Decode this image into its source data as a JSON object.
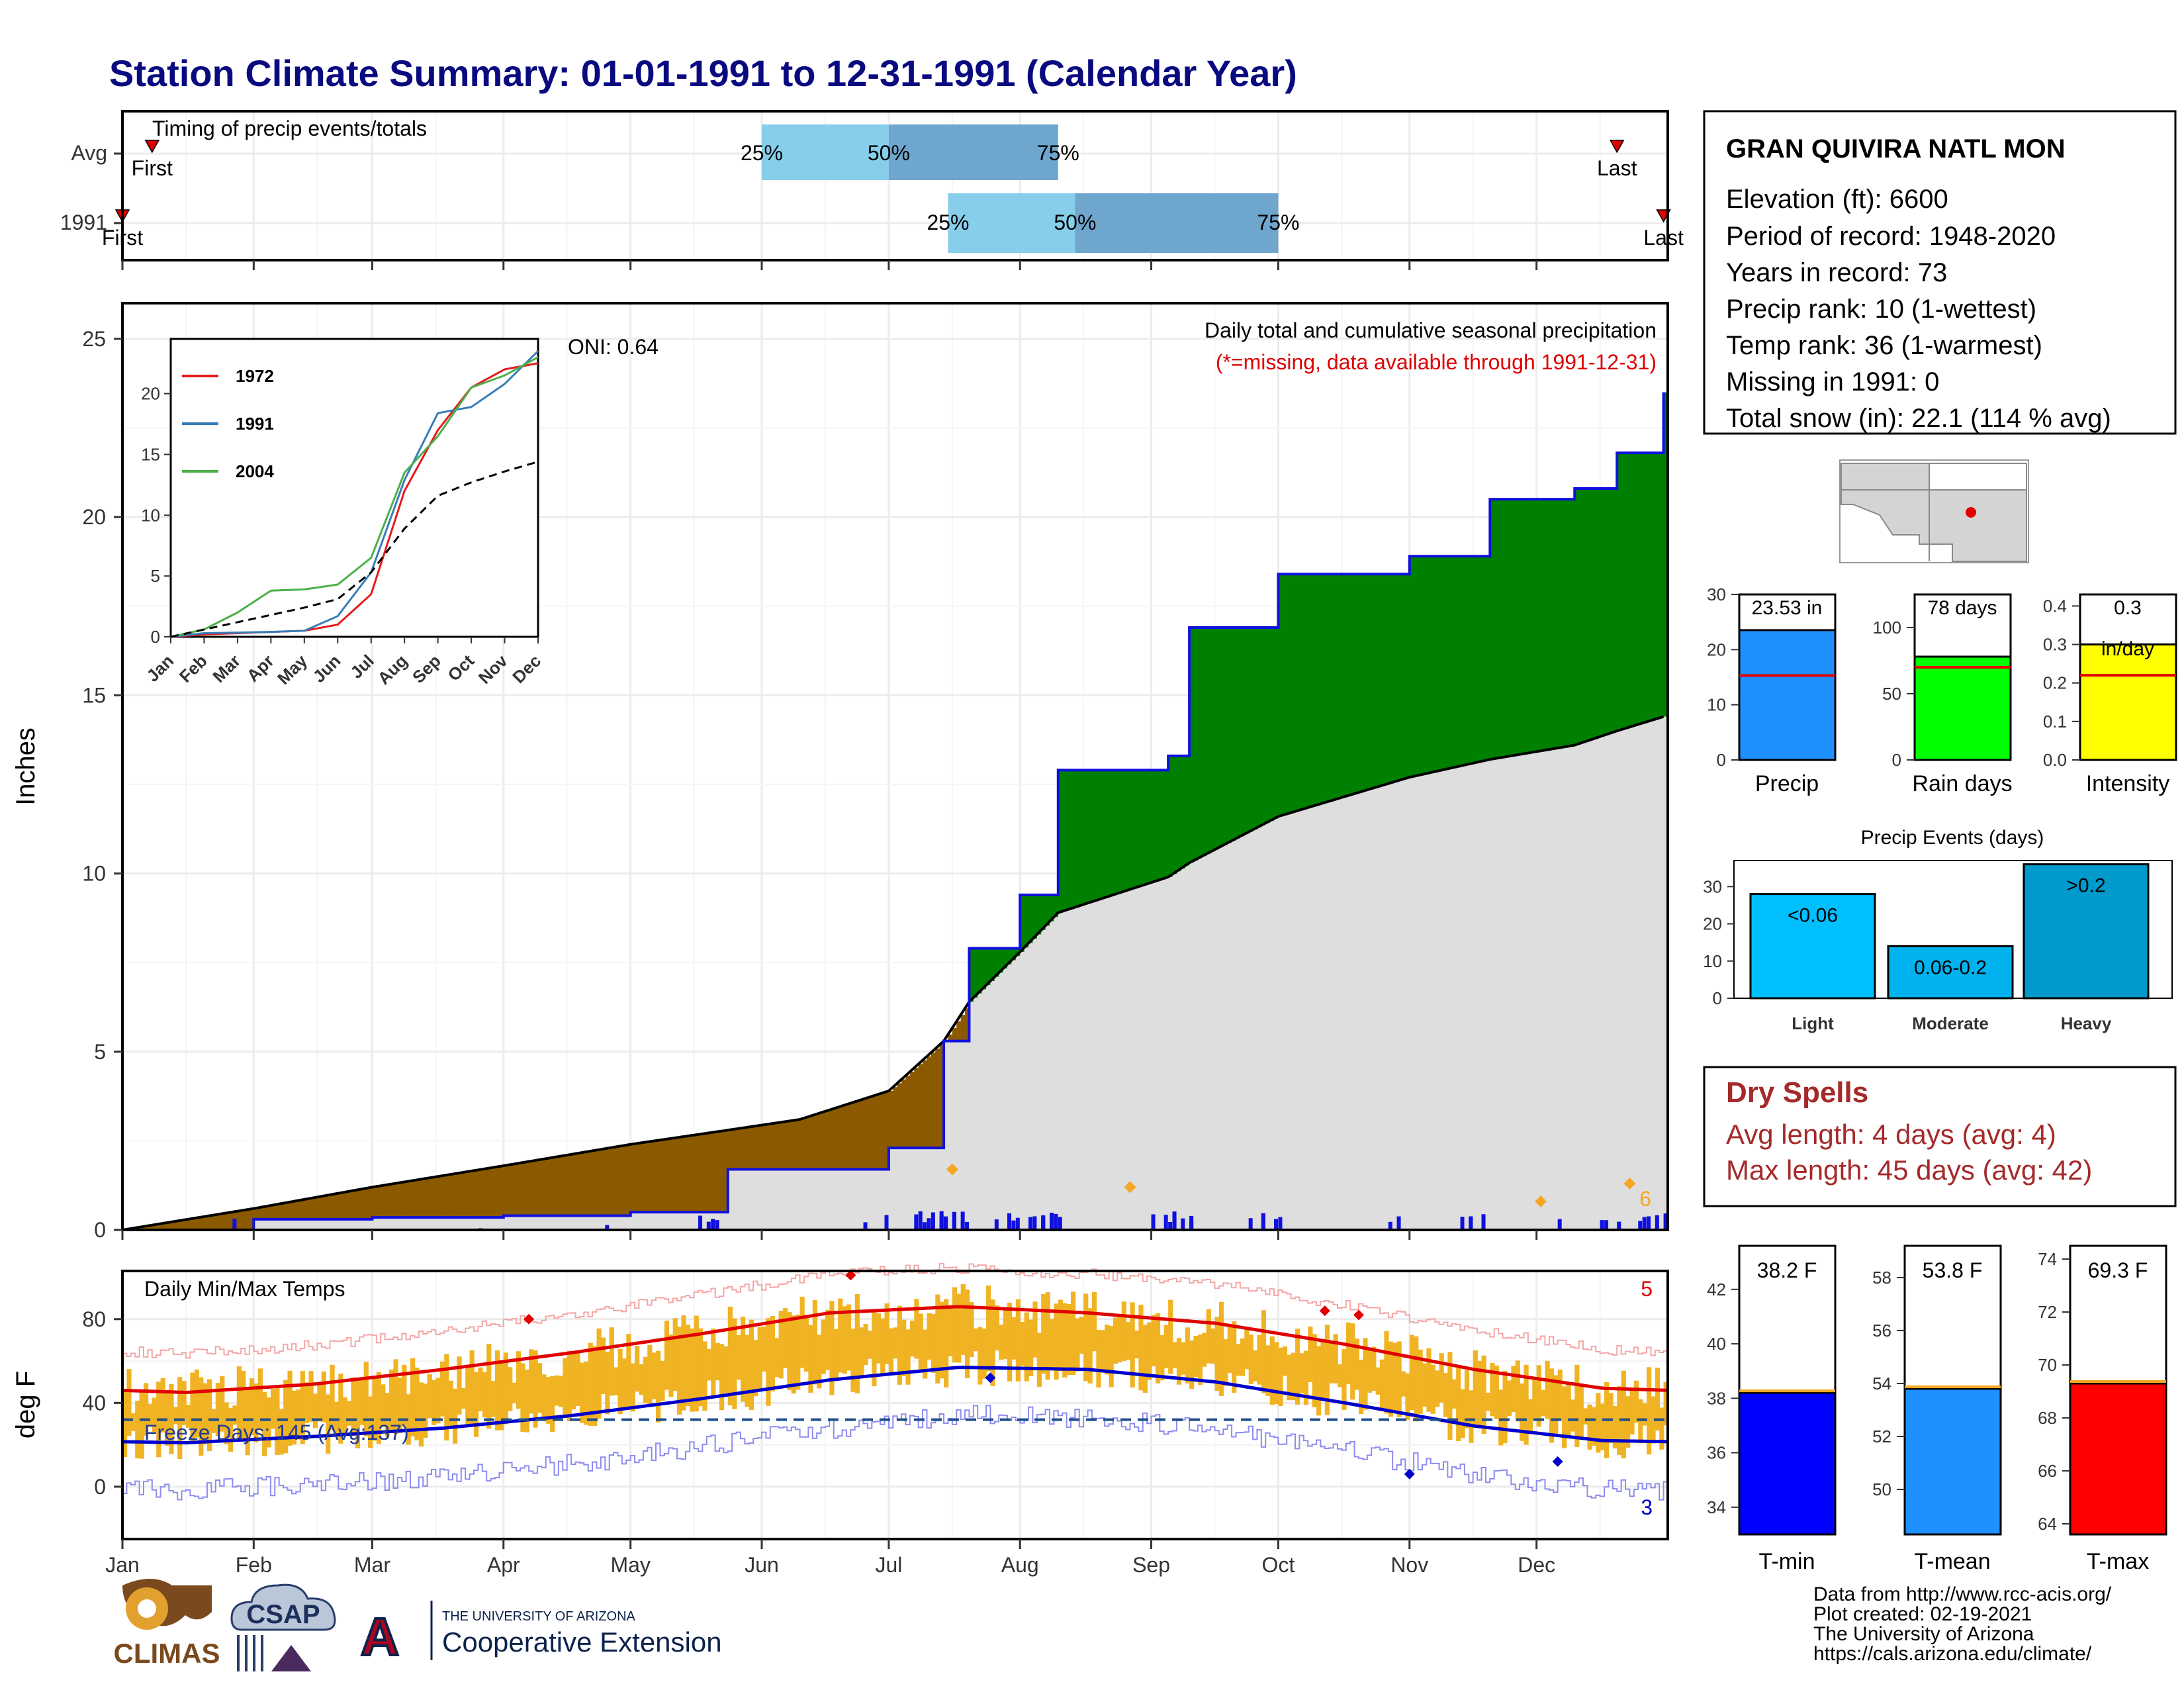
{
  "title": "Station Climate Summary: 01-01-1991 to 12-31-1991 (Calendar Year)",
  "timing_panel": {
    "label": "Timing of precip events/totals",
    "rows": [
      {
        "label": "Avg",
        "p25": "25%",
        "p50": "50%",
        "p75": "75%",
        "first": "First",
        "last": "Last",
        "first_date": "1991-01-08",
        "last_date": "1991-12-20",
        "q25": "1991-06-01",
        "q50": "1991-07-01",
        "q75": "1991-08-10"
      },
      {
        "label": "1991",
        "p25": "25%",
        "p50": "50%",
        "p75": "75%",
        "first": "First",
        "last": "Last",
        "first_date": "1991-01-01",
        "last_date": "1991-12-31",
        "q25": "1991-07-15",
        "q50": "1991-08-14",
        "q75": "1991-10-01"
      }
    ]
  },
  "precip_panel": {
    "ylabel": "Inches",
    "caption": "Daily total and cumulative seasonal precipitation",
    "missing_note": "(*=missing, data available through 1991-12-31)",
    "oni": "ONI: 0.64",
    "count_label": "6",
    "yticks": [
      "0",
      "5",
      "10",
      "15",
      "20",
      "25"
    ]
  },
  "temp_panel": {
    "label": "Daily Min/Max Temps",
    "ylabel": "deg F",
    "freeze_label": "Freeze Days: 145 (Avg:137)",
    "top_count": "5",
    "bottom_count": "3",
    "yticks": [
      "0",
      "40",
      "80"
    ]
  },
  "months": [
    "Jan",
    "Feb",
    "Mar",
    "Apr",
    "May",
    "Jun",
    "Jul",
    "Aug",
    "Sep",
    "Oct",
    "Nov",
    "Dec"
  ],
  "inset": {
    "legend": [
      "1972",
      "1991",
      "2004"
    ],
    "yticks": [
      "0",
      "5",
      "10",
      "15",
      "20"
    ],
    "months": [
      "Jan",
      "Feb",
      "Mar",
      "Apr",
      "May",
      "Jun",
      "Jul",
      "Aug",
      "Sep",
      "Oct",
      "Nov",
      "Dec"
    ]
  },
  "station": {
    "name": "GRAN QUIVIRA NATL MON",
    "lines": [
      "Elevation (ft): 6600",
      "Period of record: 1948-2020",
      "Years in record: 73",
      "Precip rank: 10 (1-wettest)",
      "Temp rank: 36 (1-warmest)",
      "Missing in 1991: 0",
      "Total snow (in): 22.1 (114 % avg)"
    ]
  },
  "summary_bars": [
    {
      "label": "Precip",
      "value_text": "23.53 in",
      "value": 23.53,
      "avg": 15.3,
      "ymax": 30,
      "ticks": [
        "0",
        "10",
        "20",
        "30"
      ],
      "tickv": [
        0,
        10,
        20,
        30
      ],
      "color": "#1e90ff"
    },
    {
      "label": "Rain days",
      "value_text": "78 days",
      "value": 78,
      "avg": 70,
      "ymax": 125,
      "ticks": [
        "0",
        "50",
        "100"
      ],
      "tickv": [
        0,
        50,
        100
      ],
      "color": "#00ff00"
    },
    {
      "label": "Intensity",
      "value_text": "0.3",
      "value_text2": "in/day",
      "value": 0.3,
      "avg": 0.22,
      "ymax": 0.43,
      "ticks": [
        "0.0",
        "0.1",
        "0.2",
        "0.3",
        "0.4"
      ],
      "tickv": [
        0,
        0.1,
        0.2,
        0.3,
        0.4
      ],
      "color": "#ffff00"
    }
  ],
  "precip_events": {
    "title": "Precip Events (days)",
    "yticks": [
      "0",
      "10",
      "20",
      "30"
    ],
    "bars": [
      {
        "label": "Light",
        "bar_text": "<0.06",
        "value": 28,
        "color": "#00bfff"
      },
      {
        "label": "Moderate",
        "bar_text": "0.06-0.2",
        "value": 14,
        "color": "#00b2ee"
      },
      {
        "label": "Heavy",
        "bar_text": ">0.2",
        "value": 36,
        "color": "#009acd"
      }
    ]
  },
  "dry_spells": {
    "title": "Dry Spells",
    "avg_line": "Avg length: 4 days (avg: 4)",
    "max_line": "Max length: 45 days (avg: 42)"
  },
  "temp_bars": [
    {
      "label": "T-min",
      "value_text": "38.2 F",
      "value": 38.2,
      "ymin": 33,
      "ymax": 43.6,
      "ticks": [
        "34",
        "36",
        "38",
        "40",
        "42"
      ],
      "tickv": [
        34,
        36,
        38,
        40,
        42
      ],
      "color": "#0000ff"
    },
    {
      "label": "T-mean",
      "value_text": "53.8 F",
      "value": 53.8,
      "ymin": 48.3,
      "ymax": 59.2,
      "ticks": [
        "50",
        "52",
        "54",
        "56",
        "58"
      ],
      "tickv": [
        50,
        52,
        54,
        56,
        58
      ],
      "color": "#1e90ff"
    },
    {
      "label": "T-max",
      "value_text": "69.3 F",
      "value": 69.3,
      "ymin": 63.6,
      "ymax": 74.5,
      "ticks": [
        "64",
        "66",
        "68",
        "70",
        "72",
        "74"
      ],
      "tickv": [
        64,
        66,
        68,
        70,
        72,
        74
      ],
      "color": "#ff0000"
    }
  ],
  "footer": {
    "credits": [
      "Data from http://www.rcc-acis.org/",
      "Plot created: 02-19-2021",
      "The University of Arizona",
      "https://cals.arizona.edu/climate/"
    ],
    "logo_climas": "CLIMAS",
    "logo_csap": "CSAP",
    "logo_ua_small": "THE UNIVERSITY OF ARIZONA",
    "logo_ua_big": "Cooperative Extension"
  },
  "chart_data": [
    {
      "type": "area",
      "title": "Daily total and cumulative seasonal precipitation",
      "ylabel": "Inches",
      "ylim": [
        0,
        26
      ],
      "x": [
        "1991-01-01",
        "1991-02-01",
        "1991-03-01",
        "1991-04-01",
        "1991-05-01",
        "1991-05-24",
        "1991-06-10",
        "1991-07-01",
        "1991-07-14",
        "1991-07-20",
        "1991-08-01",
        "1991-08-10",
        "1991-09-05",
        "1991-09-10",
        "1991-10-01",
        "1991-11-01",
        "1991-11-20",
        "1991-12-10",
        "1991-12-20",
        "1991-12-31"
      ],
      "series": [
        {
          "name": "1991",
          "values": [
            0.0,
            0.3,
            0.35,
            0.4,
            0.5,
            1.7,
            1.7,
            2.3,
            5.3,
            7.9,
            9.4,
            12.9,
            13.3,
            16.9,
            18.4,
            18.9,
            20.5,
            20.8,
            21.8,
            23.5
          ]
        },
        {
          "name": "Avg",
          "values": [
            0.0,
            0.6,
            1.2,
            1.8,
            2.4,
            2.8,
            3.1,
            3.9,
            5.3,
            6.4,
            7.8,
            8.9,
            9.9,
            10.3,
            11.6,
            12.7,
            13.2,
            13.6,
            14.0,
            14.4
          ]
        }
      ]
    },
    {
      "type": "line",
      "title": "Daily Min/Max Temps",
      "ylabel": "deg F",
      "x": [
        "Jan",
        "Feb",
        "Mar",
        "Apr",
        "May",
        "Jun",
        "Jul",
        "Aug",
        "Sep",
        "Oct",
        "Nov",
        "Dec"
      ],
      "series": [
        {
          "name": "Avg max",
          "values": [
            45,
            49,
            56,
            64,
            73,
            83,
            86,
            83,
            78,
            68,
            56,
            47
          ]
        },
        {
          "name": "Avg min",
          "values": [
            21,
            24,
            28,
            34,
            42,
            51,
            57,
            56,
            50,
            40,
            29,
            22
          ]
        }
      ]
    },
    {
      "type": "line",
      "x": [
        "Jan",
        "Feb",
        "Mar",
        "Apr",
        "May",
        "Jun",
        "Jul",
        "Aug",
        "Sep",
        "Oct",
        "Nov",
        "Dec"
      ],
      "series": [
        {
          "name": "1972",
          "values": [
            0,
            0.2,
            0.3,
            0.4,
            0.5,
            1.0,
            3.5,
            12,
            17,
            20.5,
            22,
            22.5
          ]
        },
        {
          "name": "1991",
          "values": [
            0,
            0.3,
            0.35,
            0.4,
            0.5,
            1.7,
            5.3,
            12.9,
            18.4,
            18.9,
            20.8,
            23.5
          ]
        },
        {
          "name": "2004",
          "values": [
            0,
            0.6,
            2.0,
            3.8,
            3.9,
            4.3,
            6.5,
            13.5,
            16.5,
            20.5,
            21.5,
            23
          ]
        },
        {
          "name": "Avg",
          "values": [
            0,
            0.6,
            1.2,
            1.8,
            2.4,
            3.1,
            5.3,
            8.9,
            11.6,
            12.7,
            13.6,
            14.4
          ]
        }
      ]
    }
  ]
}
